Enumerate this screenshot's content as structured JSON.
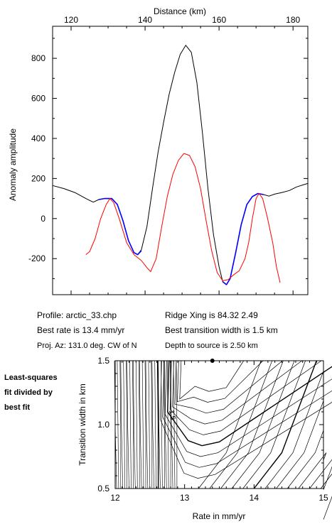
{
  "colors": {
    "observed": "#000000",
    "blue_segment": "#0000ff",
    "model": "#ff0000",
    "contour": "#000000"
  },
  "chart_data": [
    {
      "type": "line",
      "xlabel": "Distance (km)",
      "ylabel": "Anomaly amplitude",
      "xlim": [
        115,
        184
      ],
      "ylim": [
        -380,
        960
      ],
      "x_ticks": [
        120,
        140,
        160,
        180
      ],
      "y_ticks": [
        -200,
        0,
        200,
        400,
        600,
        800
      ],
      "x_axis_position": "top",
      "grid": false,
      "series": [
        {
          "style": "black",
          "points": [
            [
              115,
              165
            ],
            [
              118,
              150
            ],
            [
              121,
              130
            ],
            [
              124,
              100
            ],
            [
              126,
              82
            ],
            [
              127.5,
              95
            ],
            [
              129,
              100
            ],
            [
              131,
              100
            ],
            [
              132.5,
              70
            ],
            [
              134,
              -10
            ],
            [
              135.5,
              -110
            ],
            [
              137,
              -170
            ],
            [
              138,
              -180
            ],
            [
              139,
              -155
            ],
            [
              140.5,
              -40
            ],
            [
              142,
              150
            ],
            [
              143.5,
              330
            ],
            [
              145,
              480
            ],
            [
              146.5,
              620
            ],
            [
              148,
              730
            ],
            [
              149.5,
              820
            ],
            [
              151,
              865
            ],
            [
              152.5,
              830
            ],
            [
              154,
              680
            ],
            [
              155.5,
              430
            ],
            [
              157,
              150
            ],
            [
              158.5,
              -80
            ],
            [
              160,
              -240
            ],
            [
              161,
              -315
            ],
            [
              162,
              -330
            ],
            [
              163,
              -300
            ],
            [
              164.5,
              -170
            ],
            [
              166,
              -30
            ],
            [
              167.5,
              70
            ],
            [
              169,
              110
            ],
            [
              170.5,
              125
            ],
            [
              172,
              120
            ],
            [
              173.5,
              112
            ],
            [
              175,
              122
            ],
            [
              177,
              130
            ],
            [
              179,
              140
            ],
            [
              181,
              158
            ],
            [
              183,
              170
            ],
            [
              184,
              175
            ]
          ]
        },
        {
          "style": "blue",
          "points": [
            [
              127.5,
              95
            ],
            [
              129,
              100
            ],
            [
              131,
              100
            ],
            [
              132.5,
              70
            ],
            [
              134,
              -10
            ],
            [
              135.5,
              -110
            ],
            [
              137,
              -170
            ],
            [
              138,
              -180
            ],
            [
              139,
              -160
            ]
          ]
        },
        {
          "style": "blue",
          "points": [
            [
              161,
              -315
            ],
            [
              162,
              -330
            ],
            [
              163,
              -300
            ],
            [
              164.5,
              -170
            ],
            [
              166,
              -30
            ],
            [
              167.5,
              70
            ],
            [
              169,
              110
            ],
            [
              170.5,
              125
            ],
            [
              172,
              120
            ]
          ]
        },
        {
          "style": "red",
          "points": [
            [
              124,
              -180
            ],
            [
              125,
              -165
            ],
            [
              126.5,
              -100
            ],
            [
              128,
              0
            ],
            [
              129.5,
              70
            ],
            [
              130.5,
              100
            ],
            [
              131.5,
              80
            ],
            [
              133,
              0
            ],
            [
              135,
              -120
            ],
            [
              137,
              -180
            ],
            [
              139,
              -210
            ],
            [
              140.5,
              -245
            ],
            [
              141.5,
              -265
            ],
            [
              143,
              -200
            ],
            [
              144.5,
              -40
            ],
            [
              146,
              110
            ],
            [
              147.5,
              220
            ],
            [
              149,
              290
            ],
            [
              150.5,
              325
            ],
            [
              152,
              315
            ],
            [
              153.5,
              260
            ],
            [
              155,
              150
            ],
            [
              156.5,
              -10
            ],
            [
              158,
              -160
            ],
            [
              159.5,
              -270
            ],
            [
              161,
              -310
            ],
            [
              162.5,
              -305
            ],
            [
              164,
              -280
            ],
            [
              165.5,
              -260
            ],
            [
              167,
              -200
            ],
            [
              168,
              -120
            ],
            [
              169,
              0
            ],
            [
              170,
              100
            ],
            [
              170.8,
              125
            ],
            [
              171.8,
              100
            ],
            [
              173,
              10
            ],
            [
              174.5,
              -120
            ],
            [
              175.5,
              -240
            ],
            [
              176.5,
              -320
            ]
          ]
        }
      ]
    },
    {
      "type": "contour",
      "xlabel": "Rate in mm/yr",
      "ylabel": "Transition width in km",
      "xlim": [
        12,
        15
      ],
      "ylim": [
        0.5,
        1.5
      ],
      "x_ticks": [
        "12",
        "13",
        "14",
        "15"
      ],
      "y_ticks": [
        "0.5",
        "1.0",
        "1.5"
      ],
      "contour_label": "1.5",
      "best_fit_point": [
        13.4,
        1.5
      ]
    }
  ],
  "info": {
    "profile": "Profile: arctic_33.chp",
    "best_rate": "Best rate is 13.4 mm/yr",
    "proj_az": "Proj. Az: 131.0 deg. CW of N",
    "ridge_xing": "Ridge Xing is 84.32 2.49",
    "best_width": "Best transition width is 1.5 km",
    "depth": "Depth to source is   2.50 km"
  },
  "side_note": [
    "Least-squares",
    "fit divided by",
    "best fit"
  ]
}
